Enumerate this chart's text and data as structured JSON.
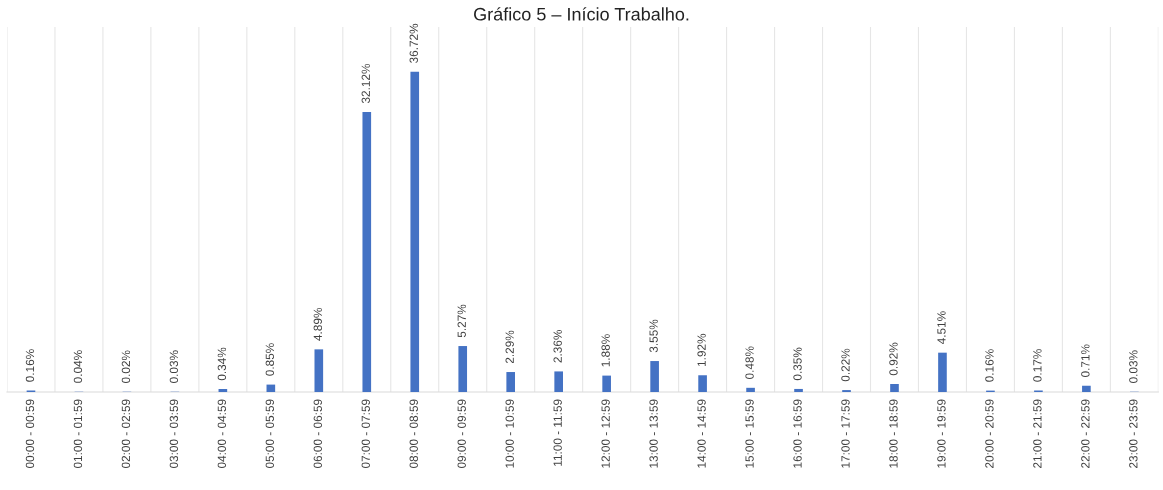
{
  "chart_data": {
    "type": "bar",
    "title": "Gráfico 5 – Início Trabalho.",
    "categories": [
      "00:00 - 00:59",
      "01:00 - 01:59",
      "02:00 - 02:59",
      "03:00 - 03:59",
      "04:00 - 04:59",
      "05:00 - 05:59",
      "06:00 - 06:59",
      "07:00 - 07:59",
      "08:00 - 08:59",
      "09:00 - 09:59",
      "10:00 - 10:59",
      "11:00 - 11:59",
      "12:00 - 12:59",
      "13:00 - 13:59",
      "14:00 - 14:59",
      "15:00 - 15:59",
      "16:00 - 16:59",
      "17:00 - 17:59",
      "18:00 - 18:59",
      "19:00 - 19:59",
      "20:00 - 20:59",
      "21:00 - 21:59",
      "22:00 - 22:59",
      "23:00 - 23:59"
    ],
    "values": [
      0.16,
      0.04,
      0.02,
      0.03,
      0.34,
      0.85,
      4.89,
      32.12,
      36.72,
      5.27,
      2.29,
      2.36,
      1.88,
      3.55,
      1.92,
      0.48,
      0.35,
      0.22,
      0.92,
      4.51,
      0.16,
      0.17,
      0.71,
      0.03
    ],
    "value_labels": [
      "0.16%",
      "0.04%",
      "0.02%",
      "0.03%",
      "0.34%",
      "0.85%",
      "4.89%",
      "32.12%",
      "36.72%",
      "5.27%",
      "2.29%",
      "2.36%",
      "1.88%",
      "3.55%",
      "1.92%",
      "0.48%",
      "0.35%",
      "0.22%",
      "0.92%",
      "4.51%",
      "0.16%",
      "0.17%",
      "0.71%",
      "0.03%"
    ],
    "color": "#4472c4",
    "grid": "x"
  }
}
